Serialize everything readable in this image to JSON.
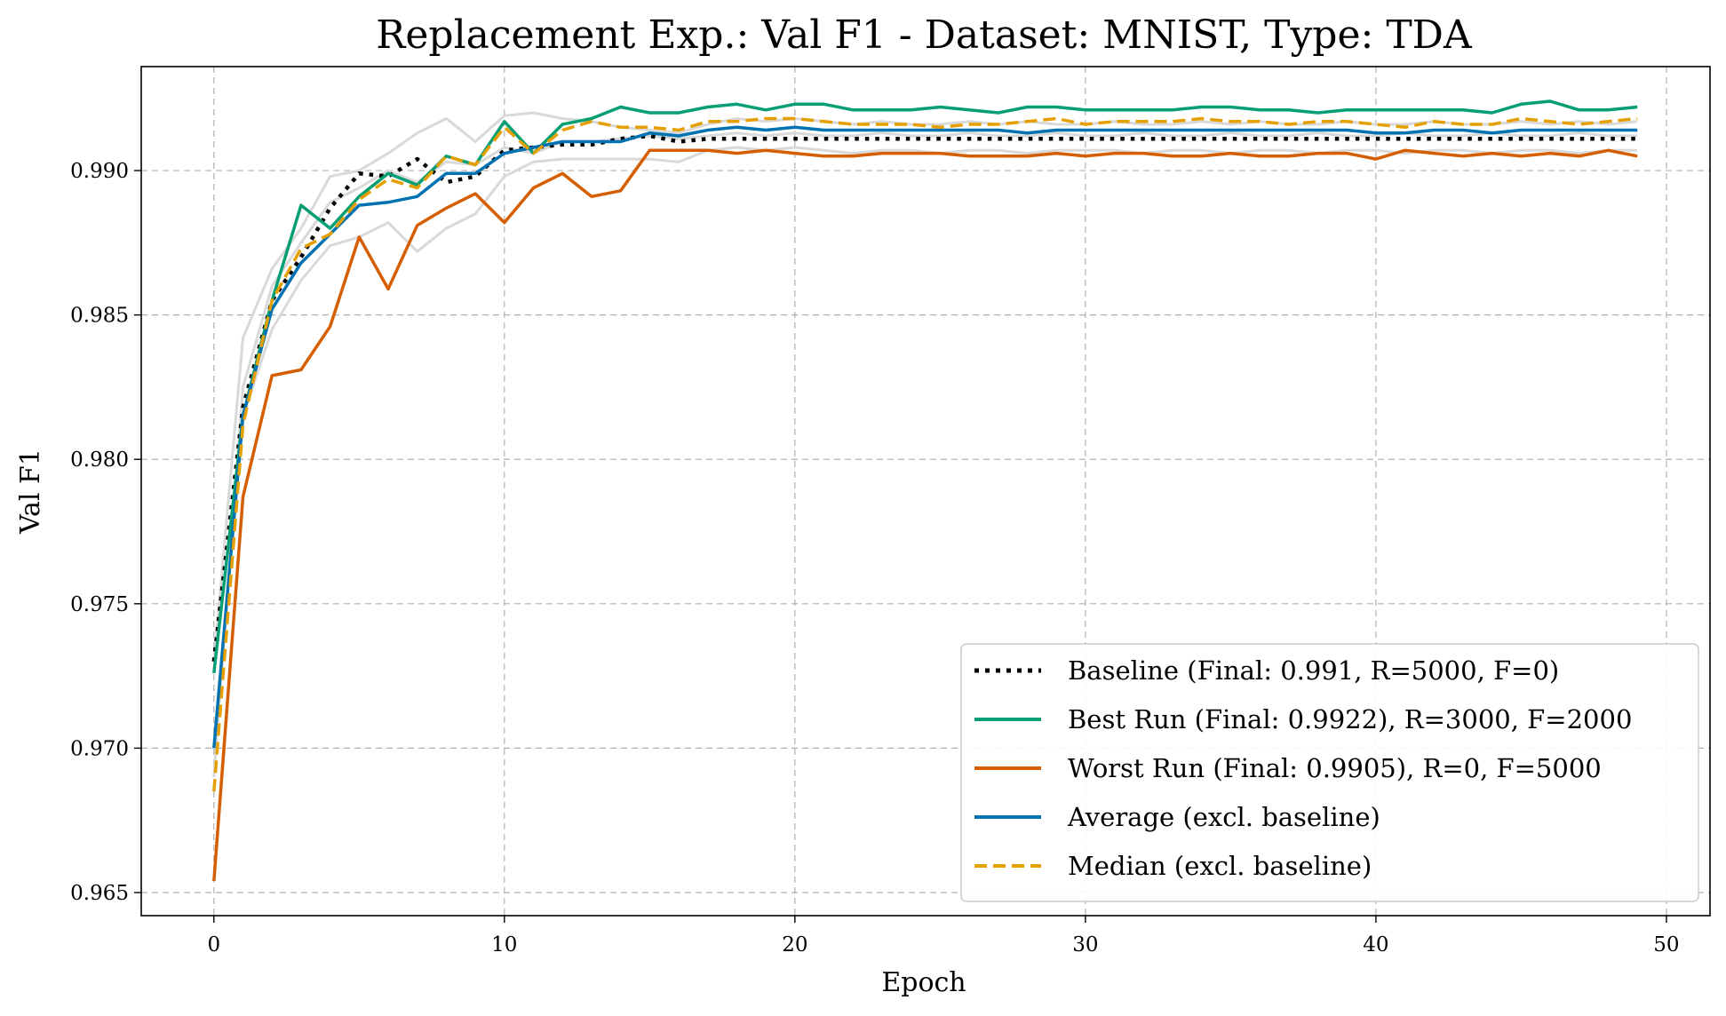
{
  "chart_data": {
    "type": "line",
    "title": "Replacement Exp.: Val F1 - Dataset: MNIST, Type: TDA",
    "xlabel": "Epoch",
    "ylabel": "Val F1",
    "xlim": [
      -2.5,
      51.5
    ],
    "ylim": [
      0.9642,
      0.9936
    ],
    "xticks": [
      0,
      10,
      20,
      30,
      40,
      50
    ],
    "yticks": [
      0.965,
      0.97,
      0.975,
      0.98,
      0.985,
      0.99
    ],
    "ytick_labels": [
      "0.965",
      "0.970",
      "0.975",
      "0.980",
      "0.985",
      "0.990"
    ],
    "grid": true,
    "legend_position": "lower-right",
    "x": [
      0,
      1,
      2,
      3,
      4,
      5,
      6,
      7,
      8,
      9,
      10,
      11,
      12,
      13,
      14,
      15,
      16,
      17,
      18,
      19,
      20,
      21,
      22,
      23,
      24,
      25,
      26,
      27,
      28,
      29,
      30,
      31,
      32,
      33,
      34,
      35,
      36,
      37,
      38,
      39,
      40,
      41,
      42,
      43,
      44,
      45,
      46,
      47,
      48,
      49
    ],
    "background_series": [
      {
        "color": "#d9d9d9",
        "values": [
          0.973,
          0.9842,
          0.9866,
          0.988,
          0.9898,
          0.99,
          0.9906,
          0.9913,
          0.9918,
          0.991,
          0.9919,
          0.992,
          0.9918,
          0.9917,
          0.9915,
          0.9914,
          0.9913,
          0.9916,
          0.9918,
          0.9917,
          0.9918,
          0.9917,
          0.9916,
          0.9917,
          0.9916,
          0.9916,
          0.9917,
          0.9916,
          0.9917,
          0.9916,
          0.9916,
          0.9917,
          0.9916,
          0.9916,
          0.9917,
          0.9916,
          0.9917,
          0.9916,
          0.9916,
          0.9917,
          0.9916,
          0.9916,
          0.9917,
          0.9916,
          0.9916,
          0.9917,
          0.9916,
          0.9917,
          0.9916,
          0.9917
        ]
      },
      {
        "color": "#d9d9d9",
        "values": [
          0.97,
          0.9815,
          0.9845,
          0.9862,
          0.9874,
          0.9877,
          0.9882,
          0.9872,
          0.988,
          0.9885,
          0.9898,
          0.9903,
          0.9904,
          0.9904,
          0.9904,
          0.9904,
          0.9903,
          0.9907,
          0.9908,
          0.9907,
          0.9908,
          0.9907,
          0.9906,
          0.9907,
          0.9907,
          0.9906,
          0.9907,
          0.9907,
          0.9906,
          0.9907,
          0.9907,
          0.9907,
          0.9906,
          0.9907,
          0.9907,
          0.9906,
          0.9907,
          0.9907,
          0.9906,
          0.9907,
          0.9907,
          0.9906,
          0.9907,
          0.9907,
          0.9906,
          0.9907,
          0.9907,
          0.9906,
          0.9907,
          0.9907
        ]
      },
      {
        "color": "#d9d9d9",
        "values": [
          0.969,
          0.9825,
          0.986,
          0.9875,
          0.9889,
          0.9894,
          0.99,
          0.9896,
          0.9903,
          0.9902,
          0.9908,
          0.9906,
          0.991,
          0.991,
          0.9911,
          0.9912,
          0.9911,
          0.9912,
          0.9913,
          0.9912,
          0.9913,
          0.9912,
          0.9912,
          0.9913,
          0.9912,
          0.9912,
          0.9913,
          0.9912,
          0.9912,
          0.9913,
          0.9912,
          0.9912,
          0.9913,
          0.9912,
          0.9912,
          0.9913,
          0.9912,
          0.9912,
          0.9913,
          0.9912,
          0.9912,
          0.9913,
          0.9912,
          0.9912,
          0.9913,
          0.9912,
          0.9912,
          0.9913,
          0.9912,
          0.9912
        ]
      }
    ],
    "series": [
      {
        "name": "Baseline (Final: 0.991, R=5000, F=0)",
        "color": "#000000",
        "dash": "dotted",
        "width": 4.5,
        "values": [
          0.973,
          0.9818,
          0.9855,
          0.987,
          0.9887,
          0.9899,
          0.9898,
          0.9904,
          0.9896,
          0.9898,
          0.9907,
          0.9908,
          0.9909,
          0.9909,
          0.9911,
          0.9912,
          0.991,
          0.9911,
          0.9911,
          0.9911,
          0.9911,
          0.9911,
          0.9911,
          0.9911,
          0.9911,
          0.9911,
          0.9911,
          0.9911,
          0.9911,
          0.9911,
          0.9911,
          0.9911,
          0.9911,
          0.9911,
          0.9911,
          0.9911,
          0.9911,
          0.9911,
          0.9911,
          0.9911,
          0.9911,
          0.9911,
          0.9911,
          0.9911,
          0.9911,
          0.9911,
          0.9911,
          0.9911,
          0.9911,
          0.9911
        ]
      },
      {
        "name": "Best Run (Final: 0.9922), R=3000, F=2000",
        "color": "#069f73",
        "dash": "solid",
        "width": 3.5,
        "values": [
          0.9726,
          0.9815,
          0.9855,
          0.9888,
          0.988,
          0.9891,
          0.9899,
          0.9895,
          0.9905,
          0.9902,
          0.9917,
          0.9906,
          0.9916,
          0.9918,
          0.9922,
          0.992,
          0.992,
          0.9922,
          0.9923,
          0.9921,
          0.9923,
          0.9923,
          0.9921,
          0.9921,
          0.9921,
          0.9922,
          0.9921,
          0.992,
          0.9922,
          0.9922,
          0.9921,
          0.9921,
          0.9921,
          0.9921,
          0.9922,
          0.9922,
          0.9921,
          0.9921,
          0.992,
          0.9921,
          0.9921,
          0.9921,
          0.9921,
          0.9921,
          0.992,
          0.9923,
          0.9924,
          0.9921,
          0.9921,
          0.9922
        ]
      },
      {
        "name": "Worst Run (Final: 0.9905), R=0, F=5000",
        "color": "#d55e00",
        "dash": "solid",
        "width": 3.5,
        "values": [
          0.9654,
          0.9787,
          0.9829,
          0.9831,
          0.9846,
          0.9877,
          0.9859,
          0.9881,
          0.9887,
          0.9892,
          0.9882,
          0.9894,
          0.9899,
          0.9891,
          0.9893,
          0.9907,
          0.9907,
          0.9907,
          0.9906,
          0.9907,
          0.9906,
          0.9905,
          0.9905,
          0.9906,
          0.9906,
          0.9906,
          0.9905,
          0.9905,
          0.9905,
          0.9906,
          0.9905,
          0.9906,
          0.9906,
          0.9905,
          0.9905,
          0.9906,
          0.9905,
          0.9905,
          0.9906,
          0.9906,
          0.9904,
          0.9907,
          0.9906,
          0.9905,
          0.9906,
          0.9905,
          0.9906,
          0.9905,
          0.9907,
          0.9905
        ]
      },
      {
        "name": "Average (excl. baseline)",
        "color": "#0072b2",
        "dash": "solid",
        "width": 3.5,
        "values": [
          0.97,
          0.9815,
          0.9852,
          0.9868,
          0.9878,
          0.9888,
          0.9889,
          0.9891,
          0.9899,
          0.9899,
          0.9906,
          0.9908,
          0.991,
          0.991,
          0.991,
          0.9913,
          0.9912,
          0.9914,
          0.9915,
          0.9914,
          0.9915,
          0.9914,
          0.9914,
          0.9914,
          0.9914,
          0.9914,
          0.9914,
          0.9914,
          0.9913,
          0.9914,
          0.9914,
          0.9914,
          0.9914,
          0.9914,
          0.9914,
          0.9914,
          0.9914,
          0.9914,
          0.9914,
          0.9914,
          0.9913,
          0.9913,
          0.9914,
          0.9914,
          0.9913,
          0.9914,
          0.9914,
          0.9914,
          0.9914,
          0.9914
        ]
      },
      {
        "name": "Median (excl. baseline)",
        "color": "#e69f00",
        "dash": "dashed",
        "width": 3.5,
        "values": [
          0.9685,
          0.9812,
          0.9855,
          0.9873,
          0.9878,
          0.989,
          0.9897,
          0.9894,
          0.9905,
          0.9902,
          0.9915,
          0.9906,
          0.9914,
          0.9917,
          0.9915,
          0.9915,
          0.9914,
          0.9917,
          0.9917,
          0.9918,
          0.9918,
          0.9917,
          0.9916,
          0.9916,
          0.9916,
          0.9915,
          0.9916,
          0.9916,
          0.9917,
          0.9918,
          0.9916,
          0.9917,
          0.9917,
          0.9917,
          0.9918,
          0.9917,
          0.9917,
          0.9916,
          0.9917,
          0.9917,
          0.9916,
          0.9915,
          0.9917,
          0.9916,
          0.9916,
          0.9918,
          0.9917,
          0.9916,
          0.9917,
          0.9918
        ]
      }
    ]
  }
}
